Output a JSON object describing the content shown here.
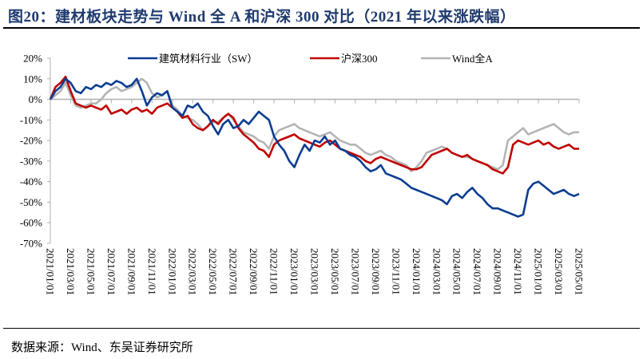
{
  "title": "图20：建材板块走势与 Wind 全 A 和沪深 300 对比（2021 年以来涨跌幅）",
  "source": "数据来源：Wind、东吴证券研究所",
  "chart_data": {
    "type": "line",
    "title": "建材板块走势与 Wind 全 A 和沪深 300 对比（2021 年以来涨跌幅）",
    "xlabel": "",
    "ylabel": "",
    "ylim": [
      -70,
      20
    ],
    "yticks": [
      "20%",
      "10%",
      "0%",
      "-10%",
      "-20%",
      "-30%",
      "-40%",
      "-50%",
      "-60%",
      "-70%"
    ],
    "ytick_values": [
      20,
      10,
      0,
      -10,
      -20,
      -30,
      -40,
      -50,
      -60,
      -70
    ],
    "xticks": [
      "2021/01/01",
      "2021/03/01",
      "2021/05/01",
      "2021/07/01",
      "2021/09/01",
      "2021/11/01",
      "2022/01/01",
      "2022/03/01",
      "2022/05/01",
      "2022/07/01",
      "2022/09/01",
      "2022/11/01",
      "2023/01/01",
      "2023/03/01",
      "2023/05/01",
      "2023/07/01",
      "2023/09/01",
      "2023/11/01",
      "2024/01/01",
      "2024/03/01",
      "2024/05/01",
      "2024/07/01",
      "2024/09/01",
      "2024/11/01",
      "2025/01/01",
      "2025/03/01",
      "2025/05/01"
    ],
    "x_unit": "month index from 2021/01 (half-month steps)",
    "legend_position": "top",
    "colors": {
      "sw": "#0b3d91",
      "hs300": "#c00000",
      "winda": "#b4b4b4"
    },
    "series": [
      {
        "name": "建筑材料行业（SW）",
        "key": "sw",
        "x": [
          0,
          0.5,
          1,
          1.5,
          2,
          2.5,
          3,
          3.5,
          4,
          4.5,
          5,
          5.5,
          6,
          6.5,
          7,
          7.5,
          8,
          8.5,
          9,
          9.5,
          10,
          10.5,
          11,
          11.5,
          12,
          12.5,
          13,
          13.5,
          14,
          14.5,
          15,
          15.5,
          16,
          16.5,
          17,
          17.5,
          18,
          18.5,
          19,
          19.5,
          20,
          20.5,
          21,
          21.5,
          22,
          22.5,
          23,
          23.5,
          24,
          24.5,
          25,
          25.5,
          26,
          26.5,
          27,
          27.5,
          28,
          28.5,
          29,
          29.5,
          30,
          30.5,
          31,
          31.5,
          32,
          32.5,
          33,
          33.5,
          34,
          34.5,
          35,
          35.5,
          36,
          36.5,
          37,
          37.5,
          38,
          38.5,
          39,
          39.5,
          40,
          40.5,
          41,
          41.5,
          42,
          42.5,
          43,
          43.5,
          44,
          44.5,
          45,
          45.5,
          46,
          46.5,
          47,
          47.5,
          48,
          48.5,
          49,
          49.5,
          50,
          50.5,
          51,
          51.5,
          52
        ],
        "values": [
          0,
          4,
          6,
          10,
          8,
          4,
          3,
          6,
          5,
          7,
          6,
          8,
          7,
          9,
          8,
          6,
          7,
          10,
          4,
          -3,
          1,
          3,
          2,
          4,
          -4,
          -6,
          -8,
          -3,
          -4,
          -2,
          -6,
          -8,
          -13,
          -17,
          -12,
          -10,
          -14,
          -13,
          -10,
          -12,
          -9,
          -6,
          -8,
          -10,
          -18,
          -22,
          -25,
          -30,
          -33,
          -27,
          -22,
          -25,
          -20,
          -21,
          -18,
          -22,
          -20,
          -24,
          -25,
          -27,
          -28,
          -30,
          -33,
          -35,
          -34,
          -32,
          -36,
          -37,
          -38,
          -39,
          -41,
          -43,
          -44,
          -45,
          -46,
          -47,
          -48,
          -49,
          -51,
          -47,
          -46,
          -48,
          -45,
          -43,
          -46,
          -48,
          -51,
          -53,
          -53,
          -54,
          -55,
          -56,
          -57,
          -56,
          -44,
          -41,
          -40,
          -42,
          -44,
          -46,
          -45,
          -44,
          -46,
          -47,
          -46
        ]
      },
      {
        "name": "沪深300",
        "key": "hs300",
        "x": [
          0,
          0.5,
          1,
          1.5,
          2,
          2.5,
          3,
          3.5,
          4,
          4.5,
          5,
          5.5,
          6,
          6.5,
          7,
          7.5,
          8,
          8.5,
          9,
          9.5,
          10,
          10.5,
          11,
          11.5,
          12,
          12.5,
          13,
          13.5,
          14,
          14.5,
          15,
          15.5,
          16,
          16.5,
          17,
          17.5,
          18,
          18.5,
          19,
          19.5,
          20,
          20.5,
          21,
          21.5,
          22,
          22.5,
          23,
          23.5,
          24,
          24.5,
          25,
          25.5,
          26,
          26.5,
          27,
          27.5,
          28,
          28.5,
          29,
          29.5,
          30,
          30.5,
          31,
          31.5,
          32,
          32.5,
          33,
          33.5,
          34,
          34.5,
          35,
          35.5,
          36,
          36.5,
          37,
          37.5,
          38,
          38.5,
          39,
          39.5,
          40,
          40.5,
          41,
          41.5,
          42,
          42.5,
          43,
          43.5,
          44,
          44.5,
          45,
          45.5,
          46,
          46.5,
          47,
          47.5,
          48,
          48.5,
          49,
          49.5,
          50,
          50.5,
          51,
          51.5,
          52
        ],
        "values": [
          0,
          6,
          8,
          11,
          4,
          -2,
          -3,
          -4,
          -3,
          -4,
          -5,
          -3,
          -7,
          -6,
          -5,
          -7,
          -5,
          -4,
          -6,
          -5,
          -7,
          -4,
          -3,
          -2,
          -4,
          -6,
          -9,
          -8,
          -12,
          -14,
          -15,
          -13,
          -10,
          -12,
          -9,
          -7,
          -9,
          -14,
          -17,
          -19,
          -21,
          -24,
          -25,
          -28,
          -22,
          -20,
          -19,
          -18,
          -17,
          -19,
          -20,
          -21,
          -22,
          -23,
          -21,
          -20,
          -22,
          -24,
          -25,
          -26,
          -27,
          -28,
          -30,
          -31,
          -29,
          -28,
          -29,
          -30,
          -31,
          -32,
          -33,
          -34,
          -34,
          -33,
          -30,
          -27,
          -26,
          -25,
          -24,
          -26,
          -27,
          -28,
          -27,
          -29,
          -30,
          -31,
          -32,
          -34,
          -35,
          -36,
          -33,
          -22,
          -20,
          -21,
          -22,
          -21,
          -20,
          -22,
          -21,
          -23,
          -24,
          -23,
          -22,
          -24,
          -24
        ]
      },
      {
        "name": "Wind全A",
        "key": "winda",
        "x": [
          0,
          0.5,
          1,
          1.5,
          2,
          2.5,
          3,
          3.5,
          4,
          4.5,
          5,
          5.5,
          6,
          6.5,
          7,
          7.5,
          8,
          8.5,
          9,
          9.5,
          10,
          10.5,
          11,
          11.5,
          12,
          12.5,
          13,
          13.5,
          14,
          14.5,
          15,
          15.5,
          16,
          16.5,
          17,
          17.5,
          18,
          18.5,
          19,
          19.5,
          20,
          20.5,
          21,
          21.5,
          22,
          22.5,
          23,
          23.5,
          24,
          24.5,
          25,
          25.5,
          26,
          26.5,
          27,
          27.5,
          28,
          28.5,
          29,
          29.5,
          30,
          30.5,
          31,
          31.5,
          32,
          32.5,
          33,
          33.5,
          34,
          34.5,
          35,
          35.5,
          36,
          36.5,
          37,
          37.5,
          38,
          38.5,
          39,
          39.5,
          40,
          40.5,
          41,
          41.5,
          42,
          42.5,
          43,
          43.5,
          44,
          44.5,
          45,
          45.5,
          46,
          46.5,
          47,
          47.5,
          48,
          48.5,
          49,
          49.5,
          50,
          50.5,
          51,
          51.5,
          52
        ],
        "values": [
          0,
          2,
          4,
          8,
          2,
          -3,
          -4,
          -3,
          -2,
          -2,
          0,
          3,
          5,
          6,
          4,
          5,
          6,
          8,
          10,
          8,
          3,
          1,
          2,
          4,
          -3,
          -5,
          -8,
          -9,
          -10,
          -12,
          -15,
          -13,
          -11,
          -11,
          -9,
          -7,
          -10,
          -13,
          -16,
          -17,
          -18,
          -20,
          -21,
          -24,
          -18,
          -15,
          -14,
          -13,
          -12,
          -14,
          -15,
          -16,
          -17,
          -18,
          -17,
          -16,
          -18,
          -20,
          -21,
          -22,
          -22,
          -24,
          -26,
          -27,
          -26,
          -25,
          -27,
          -28,
          -30,
          -31,
          -32,
          -35,
          -33,
          -30,
          -26,
          -25,
          -24,
          -23,
          -24,
          -26,
          -27,
          -28,
          -28,
          -29,
          -30,
          -31,
          -32,
          -33,
          -34,
          -32,
          -20,
          -18,
          -16,
          -14,
          -17,
          -16,
          -15,
          -14,
          -13,
          -12,
          -14,
          -16,
          -17,
          -16,
          -16
        ]
      }
    ]
  }
}
